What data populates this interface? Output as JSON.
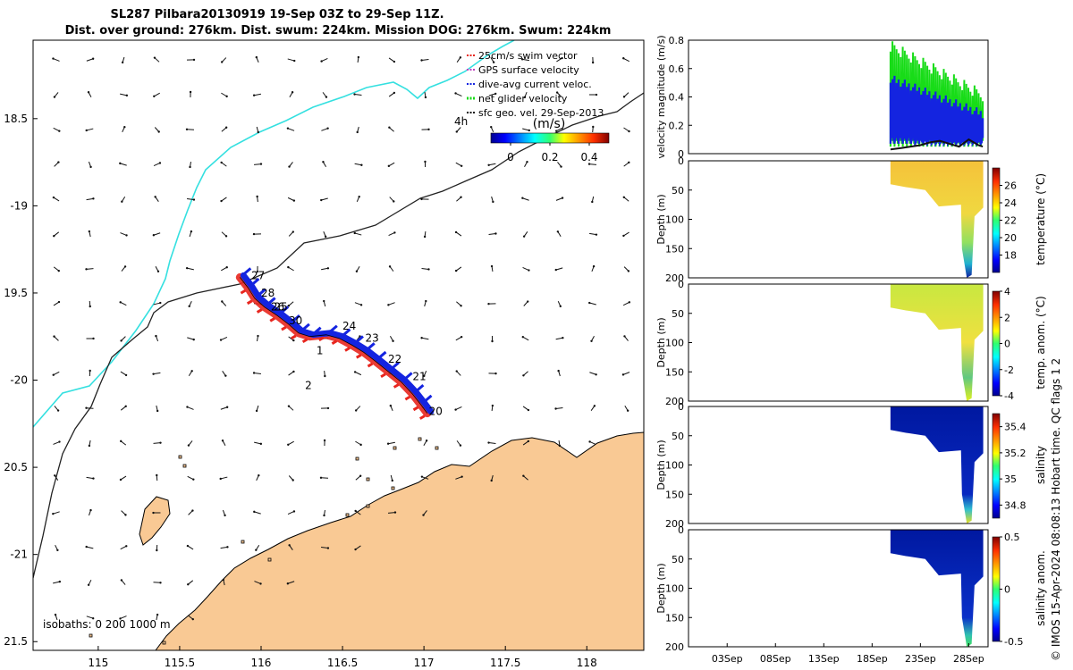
{
  "title_line1": "SL287 Pilbara20130919 19-Sep 03Z to 29-Sep 11Z.",
  "title_line2": "Dist. over ground: 276km. Dist. swum: 224km. Mission DOG: 276km. Swum: 224km",
  "credit": "© IMOS 15-Apr-2024 08:08:13 Hobart time. QC flags 1  2",
  "colors": {
    "land": "#f9c994",
    "coast": "#000000",
    "isobath_200": "#222222",
    "isobath_1000": "#35e0e0",
    "swim": "#e8261e",
    "gps": "#c040c0",
    "dive": "#1424e0",
    "net": "#18dc18",
    "geo": "#111111"
  },
  "map": {
    "chart_data": {
      "type": "map",
      "xlim": [
        114.6,
        118.35
      ],
      "ylim": [
        -21.55,
        -18.05
      ],
      "xticks": [
        115,
        115.5,
        116,
        116.5,
        117,
        117.5,
        118
      ],
      "xtick_labels": [
        "115",
        "115.5",
        "116",
        "116.5",
        "117",
        "117.5",
        "118"
      ],
      "yticks": [
        -18.5,
        -19,
        -19.5,
        -20,
        -20.5,
        -21,
        -21.5
      ],
      "ytick_labels": [
        "18.5",
        "-19",
        "19.5",
        "-20",
        "20.5",
        "-21",
        "21.5"
      ],
      "legend": {
        "entries": [
          {
            "label": "25cm/s swim vector",
            "color_key": "swim"
          },
          {
            "label": "GPS surface velocity",
            "color_key": "gps"
          },
          {
            "label": "dive-avg current veloc.",
            "color_key": "dive"
          },
          {
            "label": "net glider velocity",
            "color_key": "net"
          },
          {
            "label": "sfc geo. vel. 29-Sep-2013",
            "color_key": "geo"
          }
        ],
        "placement": "top-right"
      },
      "time_label": "4h",
      "colorbar": {
        "label": "(m/s)",
        "ticks": [
          0,
          0.2,
          0.4
        ],
        "tick_labels": [
          "0",
          "0.2",
          "0.4"
        ],
        "range": [
          -0.1,
          0.5
        ]
      },
      "isobaths_label": "isobaths: 0   200  1000 m",
      "track_days": [
        {
          "label": "20",
          "lon": 117.03,
          "lat": -20.2
        },
        {
          "label": "21",
          "lon": 116.93,
          "lat": -20.0
        },
        {
          "label": "22",
          "lon": 116.78,
          "lat": -19.9
        },
        {
          "label": "23",
          "lon": 116.64,
          "lat": -19.78
        },
        {
          "label": "24",
          "lon": 116.5,
          "lat": -19.71
        },
        {
          "label": "30",
          "lon": 116.17,
          "lat": -19.68
        },
        {
          "label": "25",
          "lon": 116.08,
          "lat": -19.6
        },
        {
          "label": "26",
          "lon": 116.06,
          "lat": -19.6
        },
        {
          "label": "28",
          "lon": 116.0,
          "lat": -19.52
        },
        {
          "label": "27",
          "lon": 115.94,
          "lat": -19.42
        },
        {
          "label": "1",
          "lon": 116.34,
          "lat": -19.85
        },
        {
          "label": "2",
          "lon": 116.27,
          "lat": -20.05
        }
      ],
      "track": [
        [
          115.87,
          -19.41
        ],
        [
          115.92,
          -19.47
        ],
        [
          115.96,
          -19.53
        ],
        [
          116.02,
          -19.58
        ],
        [
          116.1,
          -19.63
        ],
        [
          116.17,
          -19.68
        ],
        [
          116.23,
          -19.73
        ],
        [
          116.3,
          -19.75
        ],
        [
          116.4,
          -19.74
        ],
        [
          116.48,
          -19.76
        ],
        [
          116.56,
          -19.8
        ],
        [
          116.63,
          -19.84
        ],
        [
          116.7,
          -19.89
        ],
        [
          116.78,
          -19.95
        ],
        [
          116.86,
          -20.01
        ],
        [
          116.93,
          -20.08
        ],
        [
          116.98,
          -20.14
        ],
        [
          117.02,
          -20.19
        ]
      ]
    }
  },
  "profiles": {
    "velocity": {
      "chart_data": {
        "type": "line",
        "ylabel": "velocity magnitude (m/s)",
        "ylim": [
          0,
          0.8
        ],
        "yticks": [
          0,
          0.2,
          0.4,
          0.6,
          0.8
        ],
        "ytick_labels": [
          "0",
          "0.2",
          "0.4",
          "0.6",
          "0.8"
        ],
        "series": [
          {
            "name": "net glider velocity",
            "color_key": "net",
            "range": [
              0.05,
              0.78
            ]
          },
          {
            "name": "dive-avg current veloc.",
            "color_key": "dive",
            "range": [
              0.05,
              0.55
            ]
          },
          {
            "name": "sfc geo. vel.",
            "color_key": "geo",
            "x": [
              19.9,
              21,
              22,
              23,
              24,
              25,
              26,
              27,
              28,
              29,
              29.45
            ],
            "values": [
              0.03,
              0.04,
              0.05,
              0.06,
              0.08,
              0.09,
              0.07,
              0.05,
              0.1,
              0.06,
              0.05
            ]
          }
        ]
      }
    },
    "x_days": [
      -1,
      30
    ],
    "x_ticks": [
      "03Sep",
      "08Sep",
      "13Sep",
      "18Sep",
      "23Sep",
      "28Sep"
    ],
    "x_tick_days": [
      3,
      8,
      13,
      18,
      23,
      28
    ],
    "depth": {
      "ylabel": "Depth (m)",
      "yticks": [
        0,
        50,
        100,
        150,
        200
      ],
      "ytick_labels": [
        "0",
        "50",
        "100",
        "150",
        "200"
      ],
      "ylim": [
        0,
        200
      ]
    },
    "panels": [
      {
        "chart_data": {
          "type": "heatmap",
          "colorbar_label": "temperature (°C)",
          "clim": [
            16,
            28
          ],
          "ticks": [
            26,
            24,
            22,
            20,
            18
          ],
          "tick_labels": [
            "26",
            "24",
            "22",
            "20",
            "18"
          ],
          "colormap": "jet"
        }
      },
      {
        "chart_data": {
          "type": "heatmap",
          "colorbar_label": "temp. anom. (°C)",
          "clim": [
            -4,
            4
          ],
          "ticks": [
            4,
            2,
            0,
            -2,
            -4
          ],
          "tick_labels": [
            "4",
            "2",
            "0",
            "-2",
            "-4"
          ],
          "colormap": "jet"
        }
      },
      {
        "chart_data": {
          "type": "heatmap",
          "colorbar_label": "salinity",
          "clim": [
            34.7,
            35.5
          ],
          "ticks": [
            35.4,
            35.2,
            35,
            34.8
          ],
          "tick_labels": [
            "35.4",
            "35.2",
            "35",
            "34.8"
          ],
          "colormap": "jet"
        }
      },
      {
        "chart_data": {
          "type": "heatmap",
          "colorbar_label": "salinity anom.",
          "clim": [
            -0.5,
            0.5
          ],
          "ticks": [
            0.5,
            0,
            -0.5
          ],
          "tick_labels": [
            "0.5",
            "0",
            "-0.5"
          ],
          "colormap": "jet"
        }
      }
    ]
  }
}
